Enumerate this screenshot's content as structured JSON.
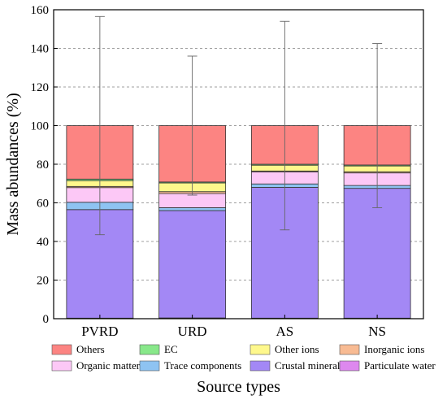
{
  "chart_data": {
    "type": "bar",
    "stacked": true,
    "categories": [
      "PVRD",
      "URD",
      "AS",
      "NS"
    ],
    "ylabel": "Mass abundances (%)",
    "xlabel": "Source types",
    "ylim": [
      0,
      160
    ],
    "yticks": [
      0,
      20,
      40,
      60,
      80,
      100,
      120,
      140,
      160
    ],
    "grid": "horizontal dashed",
    "legend_position": "bottom",
    "series": [
      {
        "name": "Particulate water",
        "color": "#dd88ee",
        "values": [
          0.3,
          0.4,
          0.3,
          0.3
        ]
      },
      {
        "name": "Crustal minerals",
        "color": "#a388f5",
        "values": [
          56.2,
          55.6,
          67.7,
          67.2
        ]
      },
      {
        "name": "Trace components",
        "color": "#8ec3f2",
        "values": [
          3.8,
          1.5,
          1.8,
          1.5
        ]
      },
      {
        "name": "Organic matter",
        "color": "#fcc8f6",
        "values": [
          7.6,
          7.3,
          6.2,
          6.5
        ]
      },
      {
        "name": "Inorganic ions",
        "color": "#f8bb93",
        "values": [
          0.6,
          1.0,
          0.5,
          0.6
        ]
      },
      {
        "name": "Other ions",
        "color": "#fef88c",
        "values": [
          3.0,
          4.5,
          3.0,
          3.0
        ]
      },
      {
        "name": "EC",
        "color": "#88e88a",
        "values": [
          0.8,
          0.5,
          0.5,
          0.5
        ]
      },
      {
        "name": "Others",
        "color": "#fc8482",
        "values": [
          27.7,
          29.2,
          20.0,
          20.4
        ]
      }
    ],
    "error_bars": [
      {
        "category": "PVRD",
        "top": 156.5,
        "bottom": 43.5
      },
      {
        "category": "URD",
        "top": 136,
        "bottom": 64
      },
      {
        "category": "AS",
        "top": 154,
        "bottom": 46
      },
      {
        "category": "NS",
        "top": 142.5,
        "bottom": 57.5
      }
    ],
    "legend_order": [
      "Others",
      "EC",
      "Other ions",
      "Inorganic ions",
      "Organic matter",
      "Trace components",
      "Crustal minerals",
      "Particulate water"
    ]
  }
}
